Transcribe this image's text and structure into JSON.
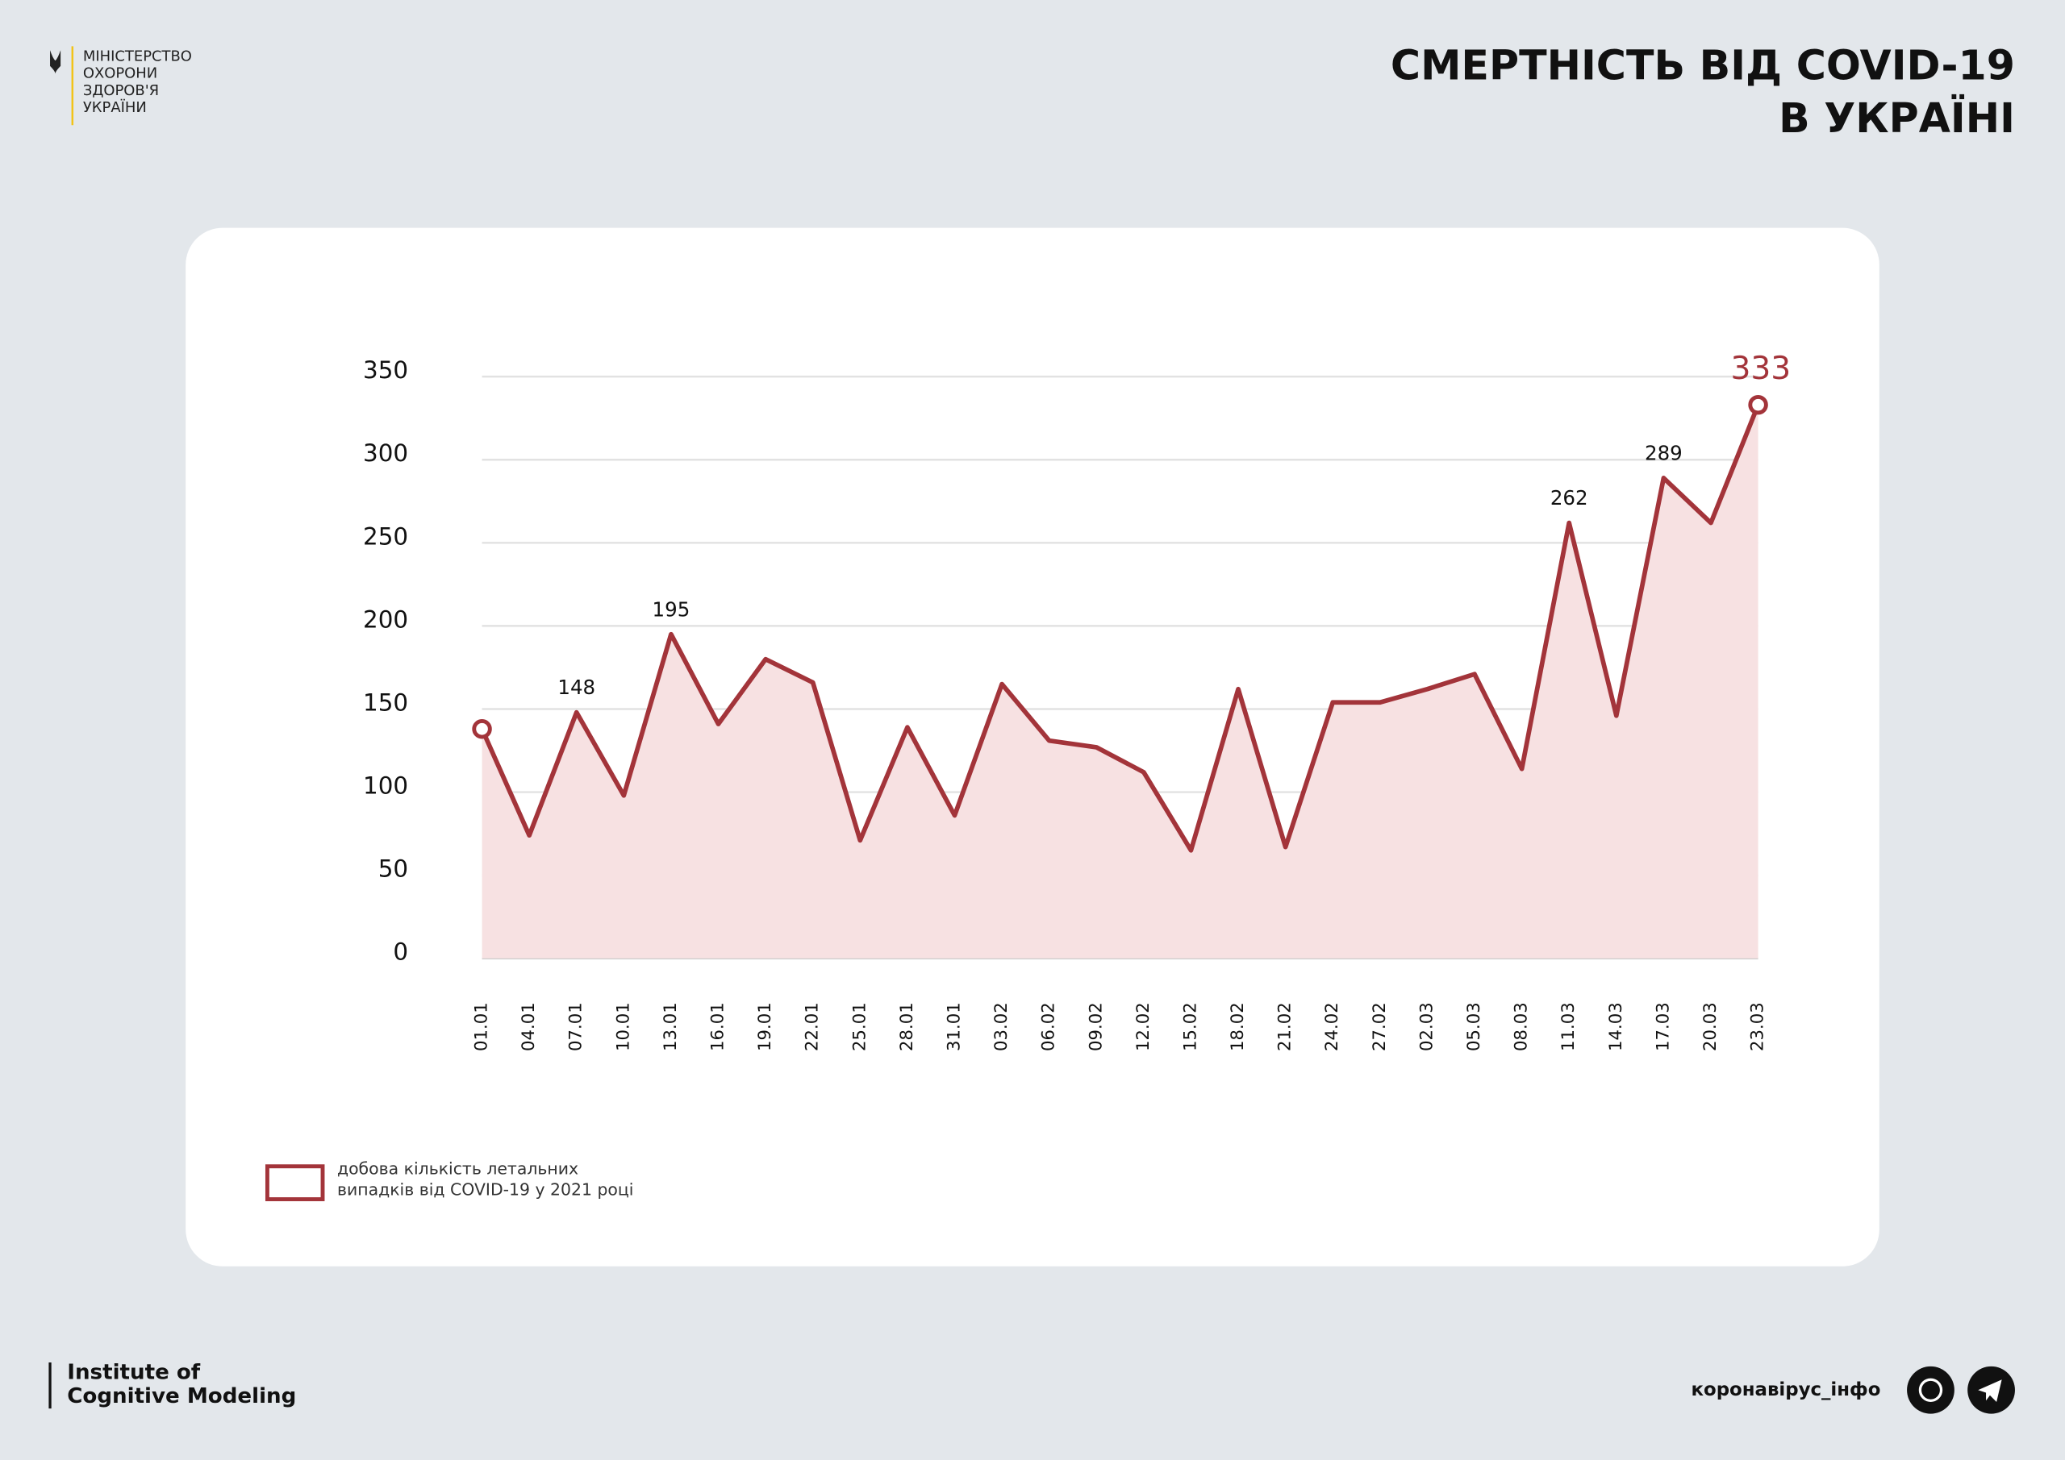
{
  "header": {
    "ministry": [
      "МІНІСТЕРСТВО",
      "ОХОРОНИ",
      "ЗДОРОВ'Я",
      "УКРАЇНИ"
    ]
  },
  "chart_data": {
    "type": "line",
    "title": [
      "СМЕРТНІСТЬ ВІД COVID-19",
      "В УКРАЇНІ"
    ],
    "categories": [
      "01.01",
      "04.01",
      "07.01",
      "10.01",
      "13.01",
      "16.01",
      "19.01",
      "22.01",
      "25.01",
      "28.01",
      "31.01",
      "03.02",
      "06.02",
      "09.02",
      "12.02",
      "15.02",
      "18.02",
      "21.02",
      "24.02",
      "27.02",
      "02.03",
      "05.03",
      "08.03",
      "11.03",
      "14.03",
      "17.03",
      "20.03",
      "23.03"
    ],
    "series": [
      {
        "name": "добова кількість летальних випадків від COVID-19 у 2021 році",
        "color": "#a3343a",
        "fill": "#f7e1e2",
        "values": [
          138,
          74,
          148,
          98,
          195,
          141,
          180,
          166,
          71,
          139,
          86,
          165,
          131,
          127,
          112,
          65,
          162,
          67,
          154,
          154,
          162,
          171,
          114,
          262,
          146,
          289,
          262,
          333
        ]
      }
    ],
    "labeled": [
      2,
      4,
      23,
      25,
      27
    ],
    "ylim": [
      0,
      350
    ],
    "yticks": [
      0,
      50,
      100,
      150,
      200,
      250,
      300,
      350
    ],
    "grid": true
  },
  "footer": {
    "institute": [
      "Institute of",
      "Cognitive Modeling"
    ],
    "handle": "коронавірус_інфо"
  }
}
